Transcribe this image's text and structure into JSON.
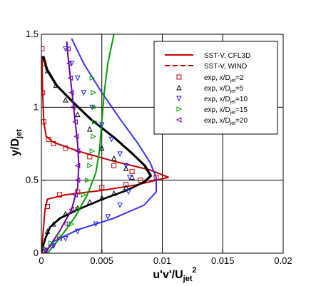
{
  "chart_data": {
    "type": "line",
    "title": "",
    "xlabel": {
      "main": "u'v'/U",
      "sub": "jet",
      "sup": "2"
    },
    "ylabel": {
      "main": "y/D",
      "sub": "jet"
    },
    "xlim": [
      0,
      0.02
    ],
    "ylim": [
      0,
      1.5
    ],
    "x_ticks": [
      {
        "value": 0,
        "label": "0"
      },
      {
        "value": 0.005,
        "label": "0.005"
      },
      {
        "value": 0.01,
        "label": "0.01"
      },
      {
        "value": 0.015,
        "label": "0.015"
      },
      {
        "value": 0.02,
        "label": "0.02"
      }
    ],
    "y_ticks": [
      {
        "value": 0,
        "label": "0"
      },
      {
        "value": 0.5,
        "label": "0.5"
      },
      {
        "value": 1,
        "label": "1"
      },
      {
        "value": 1.5,
        "label": "1.5"
      }
    ],
    "grid": true,
    "legend_position": "top-right",
    "legend": [
      {
        "text": "SST-V, CFL3D",
        "style": "solid-line",
        "color": "#c00000"
      },
      {
        "text": "SST-V, WIND",
        "style": "dashed-line",
        "color": "#c00000"
      },
      {
        "main": "exp, x/D",
        "sub": "jet",
        "after": "=2",
        "style": "square",
        "color": "#c00000"
      },
      {
        "main": "exp, x/D",
        "sub": "jet",
        "after": "=5",
        "style": "triangle-up",
        "color": "#000000"
      },
      {
        "main": "exp, x/D",
        "sub": "jet",
        "after": "=10",
        "style": "triangle-down",
        "color": "#1a1aff"
      },
      {
        "main": "exp, x/D",
        "sub": "jet",
        "after": "=15",
        "style": "triangle-right",
        "color": "#00a000"
      },
      {
        "main": "exp, x/D",
        "sub": "jet",
        "after": "=20",
        "style": "triangle-left",
        "color": "#7000a8"
      }
    ],
    "series": [
      {
        "kind": "line",
        "color": "#c00000",
        "points": [
          [
            5e-05,
            0
          ],
          [
            0.0001,
            0.1
          ],
          [
            0.0002,
            0.2
          ],
          [
            0.0003,
            0.3
          ],
          [
            0.0005,
            0.37
          ],
          [
            0.002,
            0.4
          ],
          [
            0.005,
            0.43
          ],
          [
            0.008,
            0.47
          ],
          [
            0.0105,
            0.52
          ],
          [
            0.009,
            0.57
          ],
          [
            0.006,
            0.63
          ],
          [
            0.003,
            0.7
          ],
          [
            0.001,
            0.76
          ],
          [
            0.0004,
            0.8
          ],
          [
            0.0002,
            0.9
          ],
          [
            0.0001,
            1.1
          ],
          [
            5e-05,
            1.35
          ]
        ]
      },
      {
        "kind": "line",
        "color": "#000000",
        "points": [
          [
            0,
            0
          ],
          [
            0.0003,
            0.1
          ],
          [
            0.0007,
            0.18
          ],
          [
            0.0015,
            0.24
          ],
          [
            0.003,
            0.3
          ],
          [
            0.005,
            0.37
          ],
          [
            0.007,
            0.43
          ],
          [
            0.0085,
            0.49
          ],
          [
            0.009,
            0.53
          ],
          [
            0.0085,
            0.6
          ],
          [
            0.0075,
            0.68
          ],
          [
            0.006,
            0.79
          ],
          [
            0.004,
            0.92
          ],
          [
            0.0025,
            1.04
          ],
          [
            0.0012,
            1.15
          ],
          [
            0.0004,
            1.26
          ],
          [
            0.0001,
            1.35
          ]
        ]
      },
      {
        "kind": "line",
        "color": "#000000",
        "points": [
          [
            0,
            0
          ],
          [
            0.00035,
            0.1
          ],
          [
            0.00075,
            0.18
          ],
          [
            0.0016,
            0.24
          ],
          [
            0.0031,
            0.3
          ],
          [
            0.0051,
            0.37
          ],
          [
            0.0071,
            0.43
          ],
          [
            0.0086,
            0.49
          ],
          [
            0.0091,
            0.53
          ],
          [
            0.0086,
            0.6
          ],
          [
            0.0076,
            0.68
          ],
          [
            0.0061,
            0.79
          ],
          [
            0.0041,
            0.92
          ],
          [
            0.0026,
            1.04
          ],
          [
            0.0013,
            1.15
          ],
          [
            0.0005,
            1.26
          ],
          [
            0.0002,
            1.35
          ]
        ]
      },
      {
        "kind": "line",
        "color": "#3333ff",
        "points": [
          [
            0.0003,
            0
          ],
          [
            0.001,
            0.08
          ],
          [
            0.003,
            0.16
          ],
          [
            0.006,
            0.24
          ],
          [
            0.0085,
            0.33
          ],
          [
            0.0095,
            0.42
          ],
          [
            0.0095,
            0.52
          ],
          [
            0.009,
            0.62
          ],
          [
            0.008,
            0.75
          ],
          [
            0.0065,
            0.92
          ],
          [
            0.005,
            1.1
          ],
          [
            0.0035,
            1.3
          ],
          [
            0.0025,
            1.47
          ]
        ]
      },
      {
        "kind": "line",
        "color": "#00a000",
        "points": [
          [
            0.0005,
            0
          ],
          [
            0.0015,
            0.1
          ],
          [
            0.0028,
            0.25
          ],
          [
            0.0038,
            0.4
          ],
          [
            0.0045,
            0.55
          ],
          [
            0.0048,
            0.7
          ],
          [
            0.005,
            0.9
          ],
          [
            0.0052,
            1.1
          ],
          [
            0.0055,
            1.3
          ],
          [
            0.006,
            1.5
          ]
        ]
      },
      {
        "kind": "line",
        "color": "#7000a8",
        "points": [
          [
            0.0003,
            0
          ],
          [
            0.0015,
            0.15
          ],
          [
            0.0025,
            0.3
          ],
          [
            0.003,
            0.45
          ],
          [
            0.0031,
            0.6
          ],
          [
            0.003,
            0.75
          ],
          [
            0.0028,
            0.9
          ],
          [
            0.0026,
            1.05
          ],
          [
            0.0024,
            1.2
          ],
          [
            0.0022,
            1.35
          ],
          [
            0.0021,
            1.45
          ]
        ]
      },
      {
        "kind": "square",
        "color": "#c00000",
        "points": [
          [
            0.0002,
            0.02
          ],
          [
            0.0005,
            0.32
          ],
          [
            0.0015,
            0.4
          ],
          [
            0.003,
            0.42
          ],
          [
            0.005,
            0.45
          ],
          [
            0.007,
            0.47
          ],
          [
            0.0082,
            0.5
          ],
          [
            0.0095,
            0.52
          ],
          [
            0.0075,
            0.56
          ],
          [
            0.006,
            0.6
          ],
          [
            0.004,
            0.66
          ],
          [
            0.002,
            0.72
          ],
          [
            0.001,
            0.75
          ],
          [
            0.0006,
            0.78
          ],
          [
            0.0002,
            0.9
          ],
          [
            0.0001,
            1.1
          ],
          [
            0.0001,
            1.3
          ],
          [
            5e-05,
            1.4
          ]
        ]
      },
      {
        "kind": "triangle-up",
        "color": "#000000",
        "points": [
          [
            0.0001,
            0.05
          ],
          [
            0.0005,
            0.15
          ],
          [
            0.001,
            0.2
          ],
          [
            0.002,
            0.27
          ],
          [
            0.003,
            0.31
          ],
          [
            0.004,
            0.35
          ],
          [
            0.005,
            0.38
          ],
          [
            0.006,
            0.41
          ],
          [
            0.007,
            0.45
          ],
          [
            0.0075,
            0.52
          ],
          [
            0.007,
            0.58
          ],
          [
            0.006,
            0.65
          ],
          [
            0.005,
            0.72
          ],
          [
            0.004,
            0.85
          ],
          [
            0.003,
            0.95
          ],
          [
            0.002,
            1.05
          ],
          [
            0.0012,
            1.15
          ],
          [
            0.0005,
            1.25
          ]
        ]
      },
      {
        "kind": "triangle-down",
        "color": "#1a1aff",
        "points": [
          [
            0.0003,
            0.02
          ],
          [
            0.001,
            0.05
          ],
          [
            0.002,
            0.1
          ],
          [
            0.003,
            0.15
          ],
          [
            0.0045,
            0.2
          ],
          [
            0.0055,
            0.25
          ],
          [
            0.0065,
            0.33
          ],
          [
            0.0072,
            0.42
          ],
          [
            0.0073,
            0.52
          ],
          [
            0.007,
            0.6
          ],
          [
            0.0065,
            0.68
          ],
          [
            0.0058,
            0.78
          ],
          [
            0.005,
            0.88
          ],
          [
            0.0042,
            1.0
          ],
          [
            0.0035,
            1.1
          ],
          [
            0.003,
            1.2
          ],
          [
            0.0025,
            1.3
          ],
          [
            0.002,
            1.4
          ]
        ]
      },
      {
        "kind": "triangle-right",
        "color": "#00a000",
        "points": [
          [
            0.0003,
            0.03
          ],
          [
            0.0008,
            0.07
          ],
          [
            0.0015,
            0.12
          ],
          [
            0.0025,
            0.2
          ],
          [
            0.003,
            0.3
          ],
          [
            0.0035,
            0.4
          ],
          [
            0.0038,
            0.5
          ],
          [
            0.004,
            0.6
          ],
          [
            0.0042,
            0.7
          ],
          [
            0.0043,
            0.8
          ],
          [
            0.0044,
            0.9
          ],
          [
            0.0044,
            1.0
          ],
          [
            0.0043,
            1.1
          ],
          [
            0.0042,
            1.2
          ]
        ]
      },
      {
        "kind": "triangle-left",
        "color": "#7000a8",
        "points": [
          [
            0.0003,
            0.02
          ],
          [
            0.0008,
            0.05
          ],
          [
            0.0015,
            0.1
          ],
          [
            0.002,
            0.2
          ],
          [
            0.0025,
            0.3
          ],
          [
            0.0028,
            0.4
          ],
          [
            0.003,
            0.5
          ],
          [
            0.003,
            0.6
          ],
          [
            0.003,
            0.7
          ],
          [
            0.0029,
            0.8
          ],
          [
            0.0028,
            0.9
          ],
          [
            0.0026,
            1.0
          ],
          [
            0.0025,
            1.1
          ],
          [
            0.0024,
            1.2
          ],
          [
            0.0023,
            1.3
          ],
          [
            0.0022,
            1.4
          ]
        ]
      }
    ]
  }
}
